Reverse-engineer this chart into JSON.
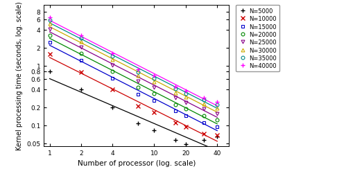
{
  "series": [
    {
      "label": "N=5000",
      "color": "#000000",
      "marker": "+",
      "markeredgewidth": 1.0,
      "markersize": 4,
      "x_points": [
        1,
        2,
        4,
        7,
        10,
        16,
        20,
        30,
        40
      ],
      "y_points": [
        0.8,
        0.395,
        0.2,
        0.108,
        0.083,
        0.057,
        0.048,
        0.057,
        0.065
      ]
    },
    {
      "label": "N=10000",
      "color": "#cc0000",
      "marker": "x",
      "markeredgewidth": 1.0,
      "markersize": 4,
      "x_points": [
        1,
        2,
        4,
        7,
        10,
        16,
        20,
        30,
        40
      ],
      "y_points": [
        1.55,
        0.78,
        0.395,
        0.21,
        0.165,
        0.11,
        0.093,
        0.072,
        0.068
      ]
    },
    {
      "label": "N=15000",
      "color": "#0000cc",
      "marker": "s",
      "markeredgewidth": 0.8,
      "markersize": 3.5,
      "x_points": [
        1,
        2,
        4,
        7,
        10,
        16,
        20,
        30,
        40
      ],
      "y_points": [
        2.45,
        1.22,
        0.615,
        0.33,
        0.26,
        0.172,
        0.145,
        0.112,
        0.095
      ]
    },
    {
      "label": "N=20000",
      "color": "#008800",
      "marker": "o",
      "markeredgewidth": 0.8,
      "markersize": 3.5,
      "x_points": [
        1,
        2,
        4,
        7,
        10,
        16,
        20,
        30,
        40
      ],
      "y_points": [
        3.2,
        1.6,
        0.8,
        0.43,
        0.338,
        0.223,
        0.188,
        0.146,
        0.123
      ]
    },
    {
      "label": "N=25000",
      "color": "#880088",
      "marker": "v",
      "markeredgewidth": 0.8,
      "markersize": 3.5,
      "x_points": [
        1,
        2,
        4,
        7,
        10,
        16,
        20,
        30,
        40
      ],
      "y_points": [
        4.1,
        2.05,
        1.03,
        0.553,
        0.436,
        0.288,
        0.243,
        0.188,
        0.158
      ]
    },
    {
      "label": "N=30000",
      "color": "#ccaa00",
      "marker": "^",
      "markeredgewidth": 0.8,
      "markersize": 3.5,
      "x_points": [
        1,
        2,
        4,
        7,
        10,
        16,
        20,
        30,
        40
      ],
      "y_points": [
        5.0,
        2.5,
        1.255,
        0.674,
        0.531,
        0.351,
        0.296,
        0.229,
        0.193
      ]
    },
    {
      "label": "N=35000",
      "color": "#008888",
      "marker": "o",
      "markeredgewidth": 0.8,
      "markersize": 3.5,
      "x_points": [
        1,
        2,
        4,
        7,
        10,
        16,
        20,
        30,
        40
      ],
      "y_points": [
        5.8,
        2.9,
        1.455,
        0.782,
        0.616,
        0.407,
        0.343,
        0.266,
        0.224
      ]
    },
    {
      "label": "N=40000",
      "color": "#ff00ff",
      "marker": "+",
      "markeredgewidth": 1.0,
      "markersize": 4,
      "x_points": [
        1,
        2,
        4,
        7,
        10,
        16,
        20,
        30,
        40
      ],
      "y_points": [
        6.4,
        3.2,
        1.605,
        0.862,
        0.68,
        0.449,
        0.379,
        0.293,
        0.247
      ]
    }
  ],
  "xlabel": "Number of processor (log. scale)",
  "ylabel": "Kernel processing time (seconds, log. scale)",
  "xlim": [
    0.88,
    52
  ],
  "ylim": [
    0.045,
    10.5
  ],
  "xticks": [
    1,
    2,
    4,
    10,
    20,
    40
  ],
  "yticks": [
    0.05,
    0.1,
    0.2,
    0.4,
    0.6,
    0.8,
    1.0,
    2.0,
    4.0,
    6.0,
    8.0
  ],
  "ytick_labels": [
    "0.05",
    "0.1",
    "0.2",
    "0.4",
    "0.6",
    "0.8",
    "1",
    "2",
    "4",
    "6",
    "8"
  ],
  "xtick_labels": [
    "1",
    "2",
    "4",
    "10",
    "20",
    "40"
  ],
  "linewidth": 0.9,
  "xlabel_fontsize": 7.5,
  "ylabel_fontsize": 7.0,
  "tick_fontsize": 6.5,
  "legend_fontsize": 6.0
}
